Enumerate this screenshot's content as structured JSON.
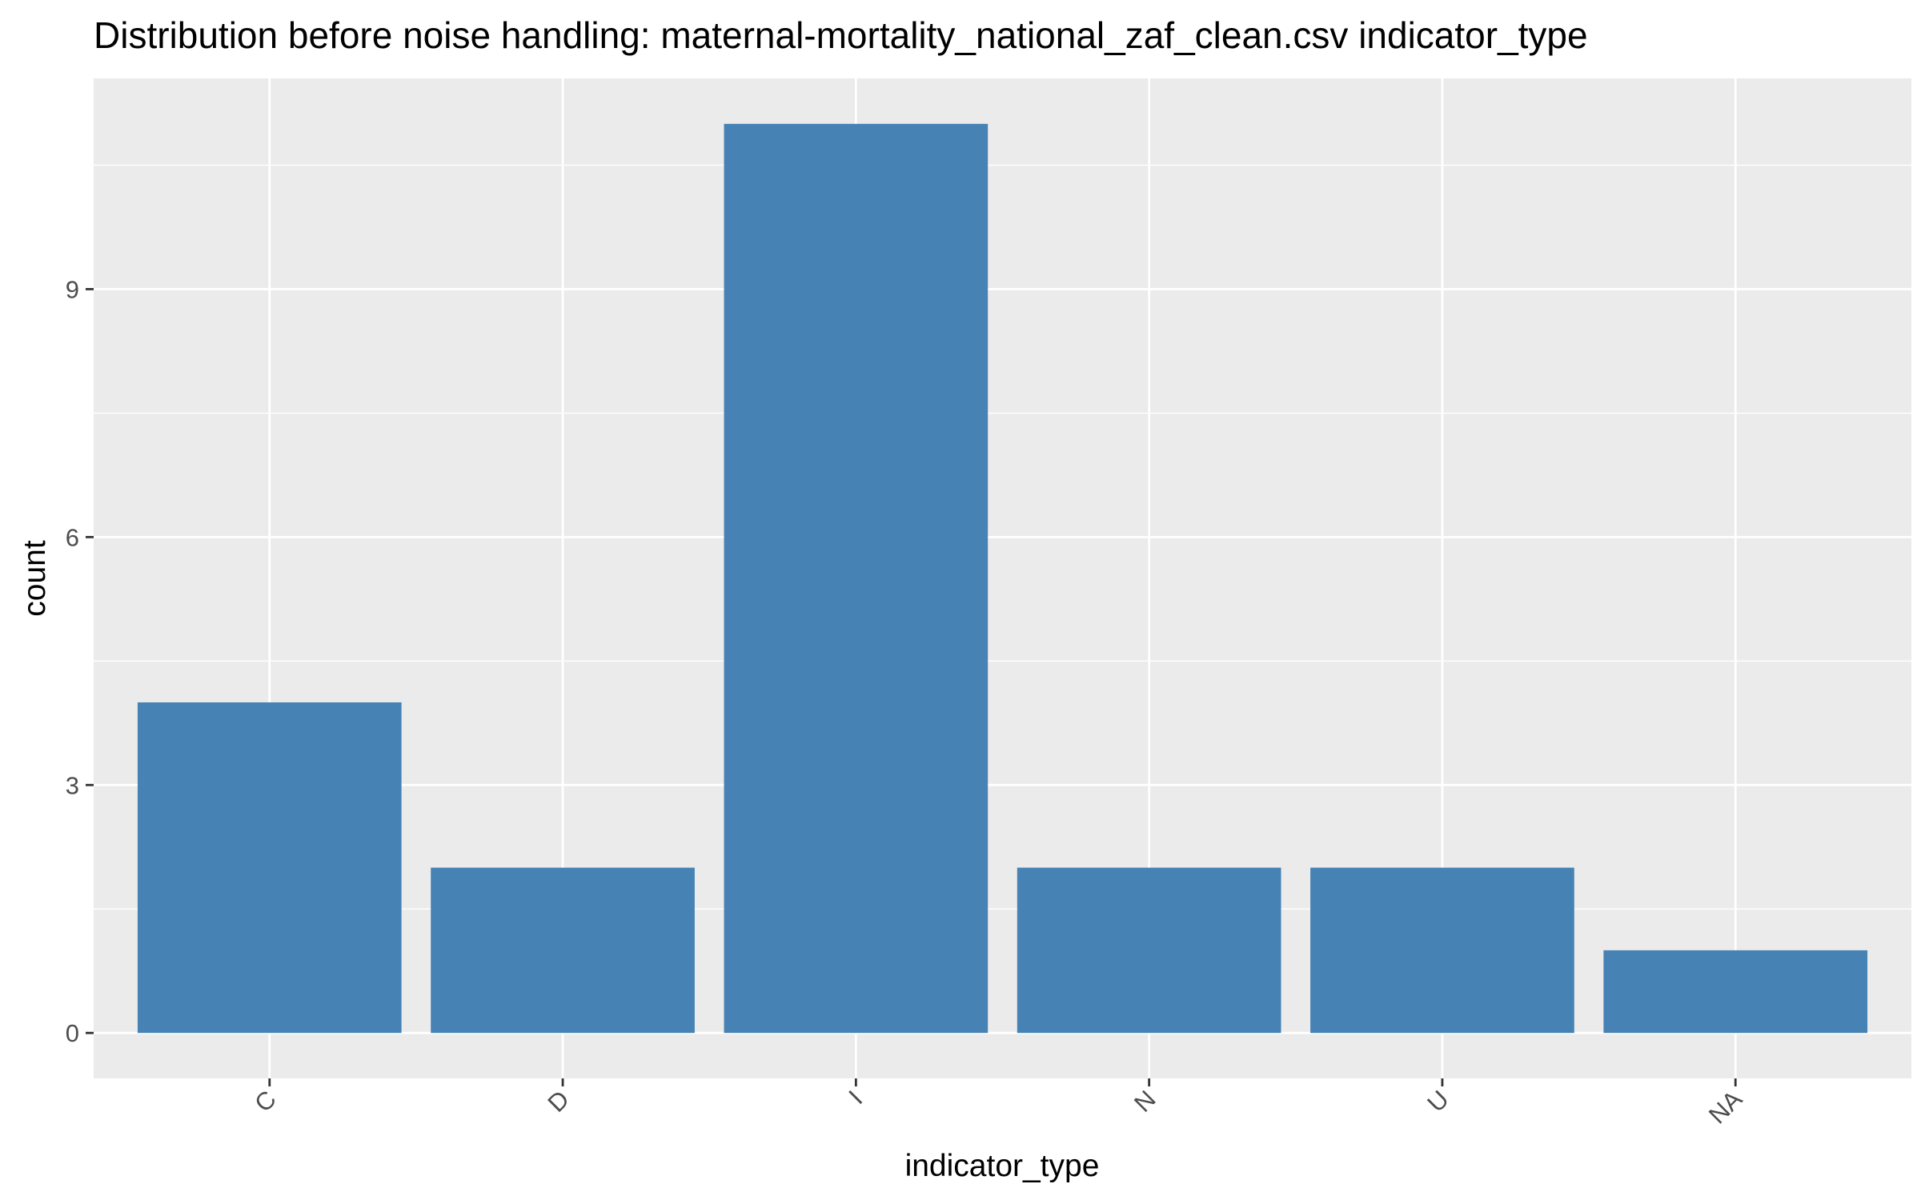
{
  "chart_data": {
    "type": "bar",
    "title": "Distribution before noise handling: maternal-mortality_national_zaf_clean.csv indicator_type",
    "xlabel": "indicator_type",
    "ylabel": "count",
    "categories": [
      "C",
      "D",
      "I",
      "N",
      "U",
      "NA"
    ],
    "values": [
      4,
      2,
      11,
      2,
      2,
      1
    ],
    "ylim": [
      -0.55,
      11.55
    ],
    "yticks": [
      0,
      3,
      6,
      9
    ],
    "ytick_labels": [
      "0",
      "3",
      "6",
      "9"
    ],
    "x_tick_rotation": "45 degrees",
    "grid": true,
    "legend": "none",
    "colors": {
      "bar": "#4682B4",
      "panel_background": "#EBEBEB",
      "grid_line": "#FFFFFF",
      "tick_text": "#4D4D4D",
      "tick_mark": "#333333"
    }
  }
}
